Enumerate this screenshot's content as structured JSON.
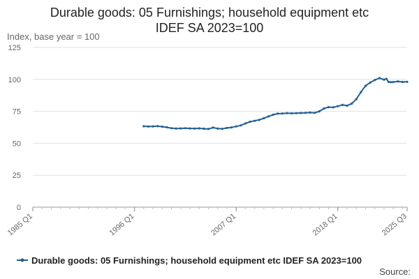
{
  "chart_data": {
    "type": "line",
    "title_lines": [
      "Durable goods: 05 Furnishings; household equipment etc",
      "IDEF SA 2023=100"
    ],
    "ylabel": "Index, base year = 100",
    "ylim": [
      0,
      125
    ],
    "yticks": [
      0,
      25,
      50,
      75,
      100,
      125
    ],
    "xlim": [
      1985.0,
      2025.5
    ],
    "xticks": [
      {
        "label": "1985 Q1",
        "value": 1985.0
      },
      {
        "label": "1996 Q1",
        "value": 1996.0
      },
      {
        "label": "2007 Q1",
        "value": 2007.0
      },
      {
        "label": "2018 Q1",
        "value": 2018.0
      },
      {
        "label": "2025 Q3",
        "value": 2025.5
      }
    ],
    "grid": true,
    "legend_position": "bottom",
    "series": [
      {
        "name": "Durable goods: 05 Furnishings; household equipment etc IDEF SA 2023=100",
        "color": "#206095",
        "x": [
          1997.0,
          1997.5,
          1998.0,
          1998.5,
          1999.0,
          1999.5,
          2000.0,
          2000.5,
          2001.0,
          2001.5,
          2002.0,
          2002.5,
          2003.0,
          2003.5,
          2004.0,
          2004.5,
          2005.0,
          2005.5,
          2006.0,
          2006.5,
          2007.0,
          2007.5,
          2008.0,
          2008.5,
          2009.0,
          2009.5,
          2010.0,
          2010.5,
          2011.0,
          2011.5,
          2012.0,
          2012.5,
          2013.0,
          2013.5,
          2014.0,
          2014.5,
          2015.0,
          2015.5,
          2016.0,
          2016.5,
          2017.0,
          2017.5,
          2018.0,
          2018.5,
          2019.0,
          2019.5,
          2020.0,
          2020.5,
          2021.0,
          2021.5,
          2022.0,
          2022.5,
          2023.0,
          2023.25,
          2023.5,
          2023.75,
          2024.0,
          2024.5,
          2025.0,
          2025.5
        ],
        "values": [
          63.3,
          63.1,
          63.2,
          63.4,
          63.0,
          62.5,
          61.8,
          61.5,
          61.6,
          61.8,
          61.6,
          61.5,
          61.7,
          61.4,
          61.2,
          62.3,
          61.5,
          61.3,
          62.0,
          62.4,
          63.2,
          64.0,
          65.5,
          66.8,
          67.6,
          68.3,
          69.6,
          71.0,
          72.3,
          73.2,
          73.3,
          73.6,
          73.4,
          73.5,
          73.7,
          73.8,
          74.0,
          73.8,
          75.0,
          77.2,
          78.3,
          78.1,
          79.0,
          80.0,
          79.4,
          81.0,
          84.5,
          90.0,
          95.0,
          97.5,
          99.5,
          101.0,
          99.8,
          100.4,
          98.0,
          97.8,
          97.9,
          98.4,
          98.0,
          98.1
        ]
      }
    ],
    "source_label": "Source:"
  }
}
